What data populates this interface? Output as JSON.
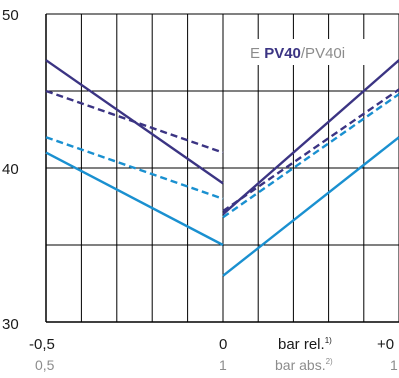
{
  "chart_data": {
    "type": "line",
    "title_parts": {
      "prefix": "E ",
      "bold": "PV40",
      "suffix": "/PV40i"
    },
    "y_ticks": [
      "30",
      "40",
      "50"
    ],
    "ylim": [
      30,
      50
    ],
    "x_ticks_main": [
      "-0,5",
      "0",
      "+0"
    ],
    "x_ticks_sub": [
      "0,5",
      "1",
      "1"
    ],
    "x_label_main": "bar rel.",
    "x_label_main_sup": "1)",
    "x_label_sub": "bar abs.",
    "x_label_sub_sup": "2)",
    "grid": true,
    "colors": {
      "dark": "#3b3483",
      "light": "#1a90d0",
      "grid": "#000000"
    },
    "series": [
      {
        "color": "dark",
        "dash": false,
        "left": [
          [
            -0.5,
            47
          ],
          [
            0,
            39
          ]
        ],
        "right": [
          [
            0,
            37
          ],
          [
            0.5,
            47
          ]
        ]
      },
      {
        "color": "dark",
        "dash": true,
        "left": [
          [
            -0.5,
            45
          ],
          [
            0,
            41
          ]
        ],
        "right": [
          [
            0,
            37.2
          ],
          [
            0.5,
            45.1
          ]
        ]
      },
      {
        "color": "light",
        "dash": true,
        "left": [
          [
            -0.5,
            42
          ],
          [
            0,
            38
          ]
        ],
        "right": [
          [
            0,
            36.8
          ],
          [
            0.5,
            44.8
          ]
        ]
      },
      {
        "color": "light",
        "dash": false,
        "left": [
          [
            -0.5,
            41
          ],
          [
            0,
            35
          ]
        ],
        "right": [
          [
            0,
            33
          ],
          [
            0.5,
            42
          ]
        ]
      }
    ]
  }
}
